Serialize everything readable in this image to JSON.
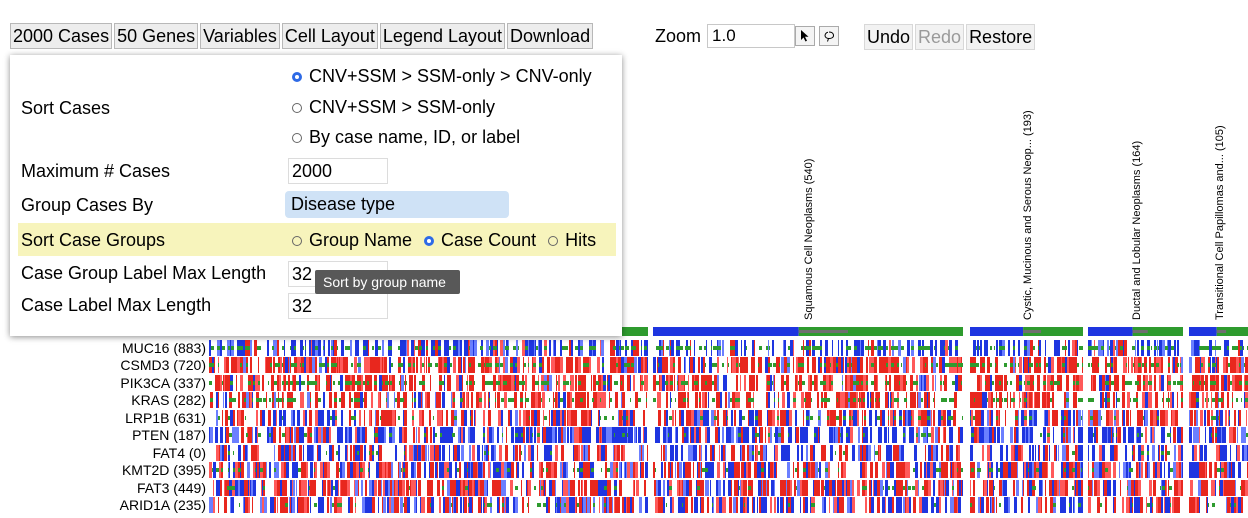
{
  "toolbar": {
    "buttons": [
      "2000 Cases",
      "50 Genes",
      "Variables",
      "Cell Layout",
      "Legend Layout",
      "Download"
    ]
  },
  "zoom": {
    "label": "Zoom",
    "value": "1.0"
  },
  "history": {
    "undo": "Undo",
    "redo": "Redo",
    "restore": "Restore"
  },
  "panel": {
    "sort_cases_label": "Sort Cases",
    "sort_options": [
      "CNV+SSM > SSM-only > CNV-only",
      "CNV+SSM > SSM-only",
      "By case name, ID, or label"
    ],
    "sort_selected": 0,
    "max_cases_label": "Maximum # Cases",
    "max_cases_value": "2000",
    "group_by_label": "Group Cases By",
    "group_by_value": "Disease type",
    "sort_groups_label": "Sort Case Groups",
    "sort_group_options": [
      "Group Name",
      "Case Count",
      "Hits"
    ],
    "sort_group_selected": 1,
    "group_label_max_label": "Case Group Label Max Length",
    "group_label_max_value": "32",
    "case_label_max_label": "Case Label Max Length",
    "case_label_max_value": "32",
    "tooltip": "Sort by group name"
  },
  "groups": [
    "Squamous Cell Neoplasms (540)",
    "Cystic, Mucinous and Serous Neop... (193)",
    "Ductal and Lobular Neoplasms (164)",
    "Transitional Cell Papillomas and... (105)"
  ],
  "genes": [
    "MUC16 (883)",
    "CSMD3 (720)",
    "PIK3CA (337)",
    "KRAS (282)",
    "LRP1B (631)",
    "PTEN (187)",
    "FAT4 (0)",
    "KMT2D (395)",
    "FAT3 (449)",
    "ARID1A (235)"
  ],
  "colors": {
    "gain": "#e8271e",
    "loss": "#1e35e0",
    "missense": "#2e9b2e",
    "truncating": "#6f6f6f",
    "hi_gain": "#ff5a5a",
    "lo_loss": "#6b7fff"
  }
}
